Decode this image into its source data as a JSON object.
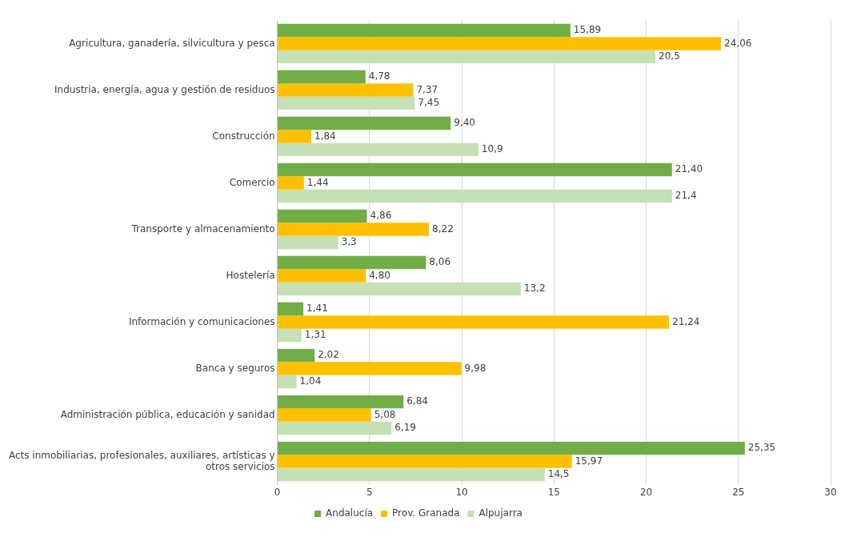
{
  "chart_data": {
    "type": "bar",
    "orientation": "horizontal",
    "categories": [
      "Agricultura, ganadería, silvicultura y pesca",
      "Industria, energía, agua y gestión de residuos",
      "Construcción",
      "Comercio",
      "Transporte y almacenamiento",
      "Hostelería",
      "Información y comunicaciones",
      "Banca y seguros",
      "Administración pública, educación y sanidad",
      "Acts inmobiliarias, profesionales, auxiliares, artísticas y otros servicios"
    ],
    "series": [
      {
        "name": "Andalucía",
        "color": "#70ad47",
        "values": [
          15.89,
          4.78,
          9.4,
          21.4,
          4.86,
          8.06,
          1.41,
          2.02,
          6.84,
          25.35
        ],
        "value_labels": [
          "15,89",
          "4,78",
          "9,40",
          "21,40",
          "4,86",
          "8,06",
          "1,41",
          "2,02",
          "6,84",
          "25,35"
        ]
      },
      {
        "name": "Prov. Granada",
        "color": "#ffc000",
        "values": [
          24.06,
          7.37,
          1.84,
          1.44,
          8.22,
          4.8,
          21.24,
          9.98,
          5.08,
          15.97
        ],
        "value_labels": [
          "24,06",
          "7,37",
          "1,84",
          "1,44",
          "8,22",
          "4,80",
          "21,24",
          "9,98",
          "5,08",
          "15,97"
        ]
      },
      {
        "name": "Alpujarra",
        "color": "#c5e0b4",
        "values": [
          20.5,
          7.45,
          10.9,
          21.4,
          3.3,
          13.2,
          1.31,
          1.04,
          6.19,
          14.5
        ],
        "value_labels": [
          "20,5",
          "7,45",
          "10,9",
          "21,4",
          "3,3",
          "13,2",
          "1,31",
          "1,04",
          "6,19",
          "14,5"
        ]
      }
    ],
    "xlim": [
      0,
      30
    ],
    "xticks": [
      0,
      5,
      10,
      15,
      20,
      25,
      30
    ],
    "grid": "x",
    "legend": "bottom"
  }
}
